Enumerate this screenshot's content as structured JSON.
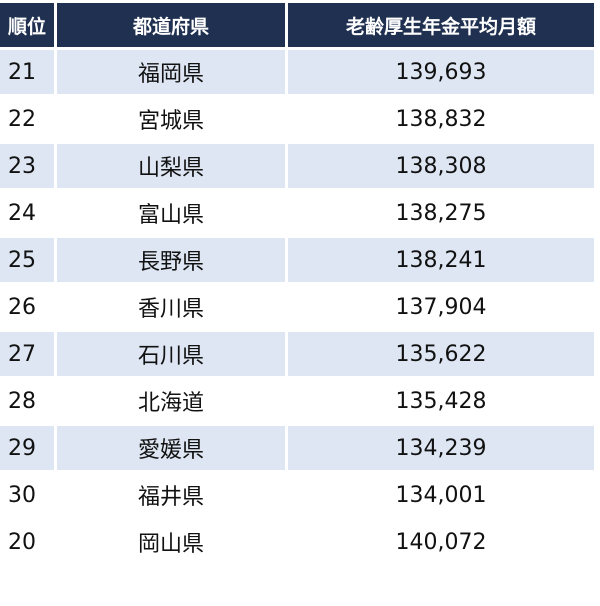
{
  "table": {
    "header": [
      "順位",
      "都道府県",
      "老齢厚生年金平均月額"
    ],
    "rows": [
      [
        "21",
        "福岡県",
        "139,693"
      ],
      [
        "22",
        "宮城県",
        "138,832"
      ],
      [
        "23",
        "山梨県",
        "138,308"
      ],
      [
        "24",
        "富山県",
        "138,275"
      ],
      [
        "25",
        "長野県",
        "138,241"
      ],
      [
        "26",
        "香川県",
        "137,904"
      ],
      [
        "27",
        "石川県",
        "135,622"
      ],
      [
        "28",
        "北海道",
        "135,428"
      ],
      [
        "29",
        "愛媛県",
        "134,239"
      ],
      [
        "30",
        "福井県",
        "134,001"
      ],
      [
        "20",
        "岡山県",
        "140,072"
      ]
    ]
  }
}
